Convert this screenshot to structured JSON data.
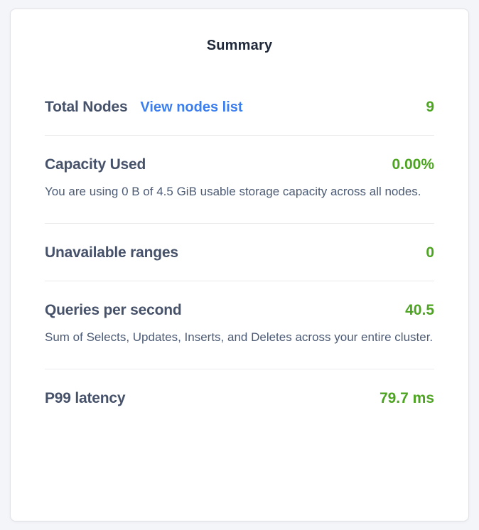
{
  "panel": {
    "title": "Summary",
    "rows": [
      {
        "label": "Total Nodes",
        "link": "View nodes list",
        "value": "9"
      },
      {
        "label": "Capacity Used",
        "value": "0.00%",
        "description": "You are using 0 B of 4.5 GiB usable storage capacity across all nodes."
      },
      {
        "label": "Unavailable ranges",
        "value": "0"
      },
      {
        "label": "Queries per second",
        "value": "40.5",
        "description": "Sum of Selects, Updates, Inserts, and Deletes across your entire cluster."
      },
      {
        "label": "P99 latency",
        "value": "79.7 ms"
      }
    ],
    "colors": {
      "value_green": "#4ca420",
      "link_blue": "#3b7ef0",
      "label_slate": "#46516a",
      "body_slate": "#4c5b75",
      "card_background": "#ffffff",
      "page_background": "#f4f5f9"
    }
  }
}
